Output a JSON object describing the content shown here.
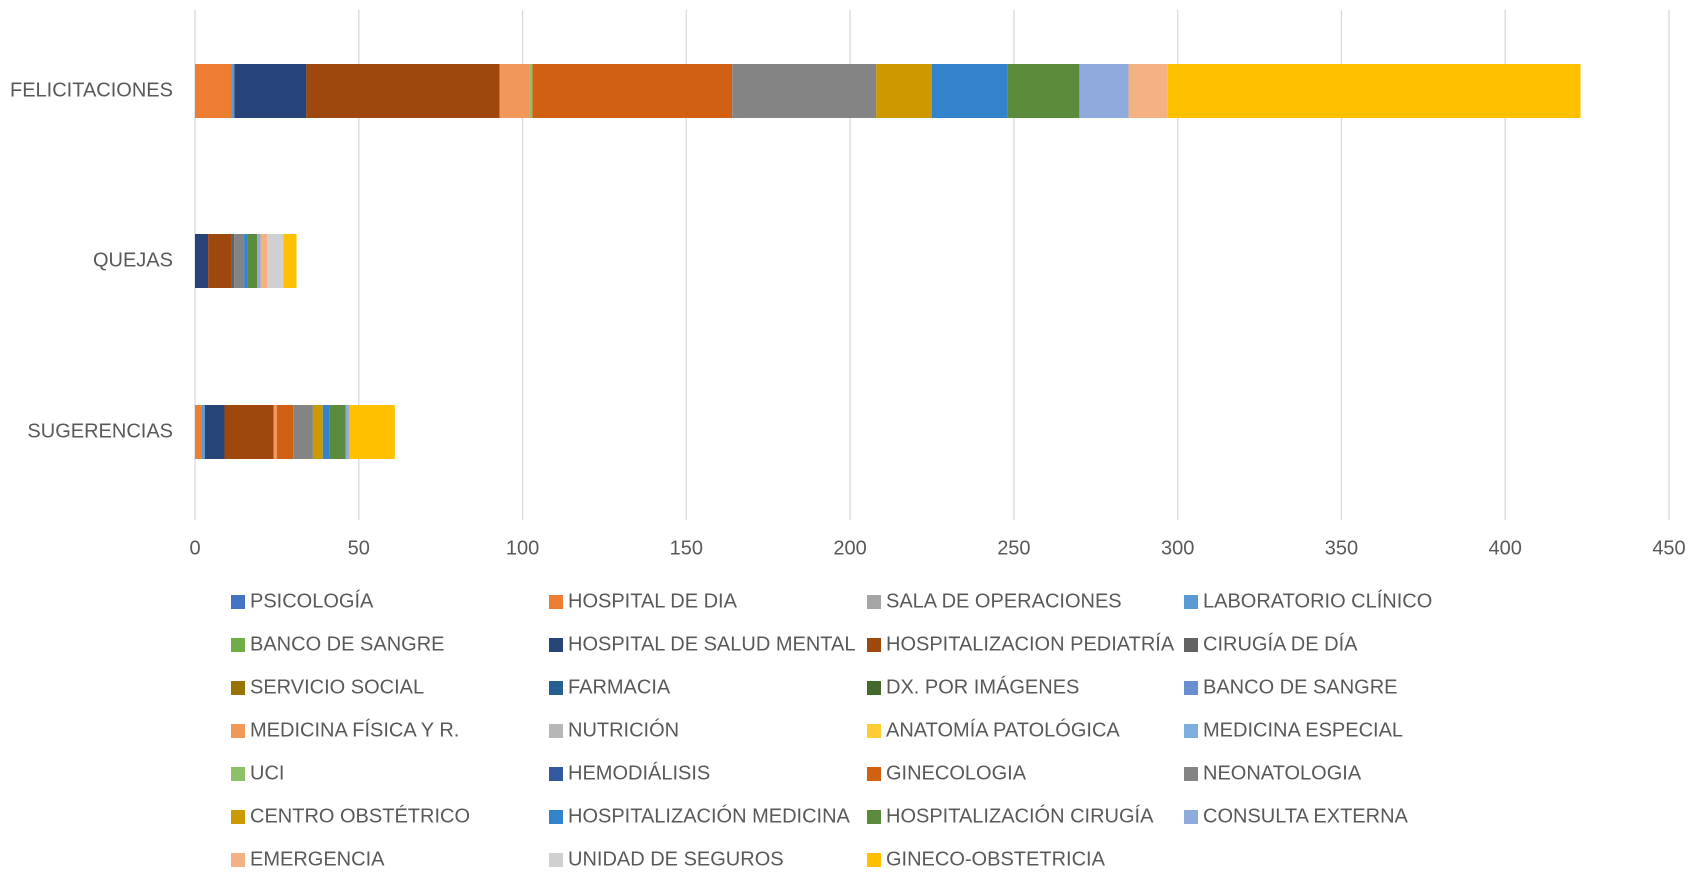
{
  "chart_data": {
    "type": "stacked_bar_horizontal",
    "categories": [
      "FELICITACIONES",
      "QUEJAS",
      "SUGERENCIAS"
    ],
    "xlim": [
      0,
      450
    ],
    "xticks": [
      0,
      50,
      100,
      150,
      200,
      250,
      300,
      350,
      400,
      450
    ],
    "grid": true,
    "series": [
      {
        "name": "PSICOLOGÍA",
        "color": "#4472c4",
        "values": [
          0,
          0,
          0
        ]
      },
      {
        "name": "HOSPITAL DE DIA",
        "color": "#ed7d31",
        "values": [
          11,
          0,
          2
        ]
      },
      {
        "name": "SALA DE OPERACIONES",
        "color": "#a5a5a5",
        "values": [
          0,
          0,
          0
        ]
      },
      {
        "name": "LABORATORIO CLÍNICO",
        "color": "#5b9bd5",
        "values": [
          1,
          0,
          1
        ]
      },
      {
        "name": "BANCO DE SANGRE",
        "color": "#70ad47",
        "values": [
          0,
          0,
          0
        ]
      },
      {
        "name": "HOSPITAL DE SALUD MENTAL",
        "color": "#264478",
        "values": [
          22,
          4,
          6
        ]
      },
      {
        "name": "HOSPITALIZACION PEDIATRÍA",
        "color": "#9e480e",
        "values": [
          59,
          7,
          15
        ]
      },
      {
        "name": "CIRUGÍA DE DÍA",
        "color": "#636363",
        "values": [
          0,
          1,
          0
        ]
      },
      {
        "name": "SERVICIO SOCIAL",
        "color": "#997300",
        "values": [
          0,
          0,
          0
        ]
      },
      {
        "name": "FARMACIA",
        "color": "#255e91",
        "values": [
          0,
          0,
          0
        ]
      },
      {
        "name": "DX. POR IMÁGENES",
        "color": "#43682b",
        "values": [
          0,
          0,
          0
        ]
      },
      {
        "name": "BANCO DE SANGRE",
        "color": "#698ed0",
        "values": [
          0,
          0,
          0
        ]
      },
      {
        "name": "MEDICINA FÍSICA Y R.",
        "color": "#f1975a",
        "values": [
          9,
          0,
          1
        ]
      },
      {
        "name": "NUTRICIÓN",
        "color": "#b7b7b7",
        "values": [
          0,
          0,
          0
        ]
      },
      {
        "name": "ANATOMÍA PATOLÓGICA",
        "color": "#ffcd33",
        "values": [
          0,
          0,
          0
        ]
      },
      {
        "name": "MEDICINA ESPECIAL",
        "color": "#7cafdd",
        "values": [
          0,
          0,
          0
        ]
      },
      {
        "name": "UCI",
        "color": "#8cc168",
        "values": [
          1,
          0,
          0
        ]
      },
      {
        "name": "HEMODIÁLISIS",
        "color": "#335aa1",
        "values": [
          0,
          0,
          0
        ]
      },
      {
        "name": "GINECOLOGIA",
        "color": "#d26012",
        "values": [
          61,
          0,
          5
        ]
      },
      {
        "name": "NEONATOLOGIA",
        "color": "#848484",
        "values": [
          44,
          3,
          6
        ]
      },
      {
        "name": "CENTRO OBSTÉTRICO",
        "color": "#cc9a00",
        "values": [
          17,
          0,
          3
        ]
      },
      {
        "name": "HOSPITALIZACIÓN MEDICINA",
        "color": "#3282cc",
        "values": [
          23,
          1,
          2
        ]
      },
      {
        "name": "HOSPITALIZACIÓN CIRUGÍA",
        "color": "#5a8a3c",
        "values": [
          22,
          3,
          5
        ]
      },
      {
        "name": "CONSULTA EXTERNA",
        "color": "#8faadc",
        "values": [
          15,
          1,
          1
        ]
      },
      {
        "name": "EMERGENCIA",
        "color": "#f4b183",
        "values": [
          12,
          2,
          0
        ]
      },
      {
        "name": "UNIDAD DE SEGUROS",
        "color": "#d0d0d0",
        "values": [
          0,
          5,
          0
        ]
      },
      {
        "name": "GINECO-OBSTETRICIA",
        "color": "#ffc000",
        "values": [
          126,
          4,
          14
        ]
      }
    ]
  }
}
